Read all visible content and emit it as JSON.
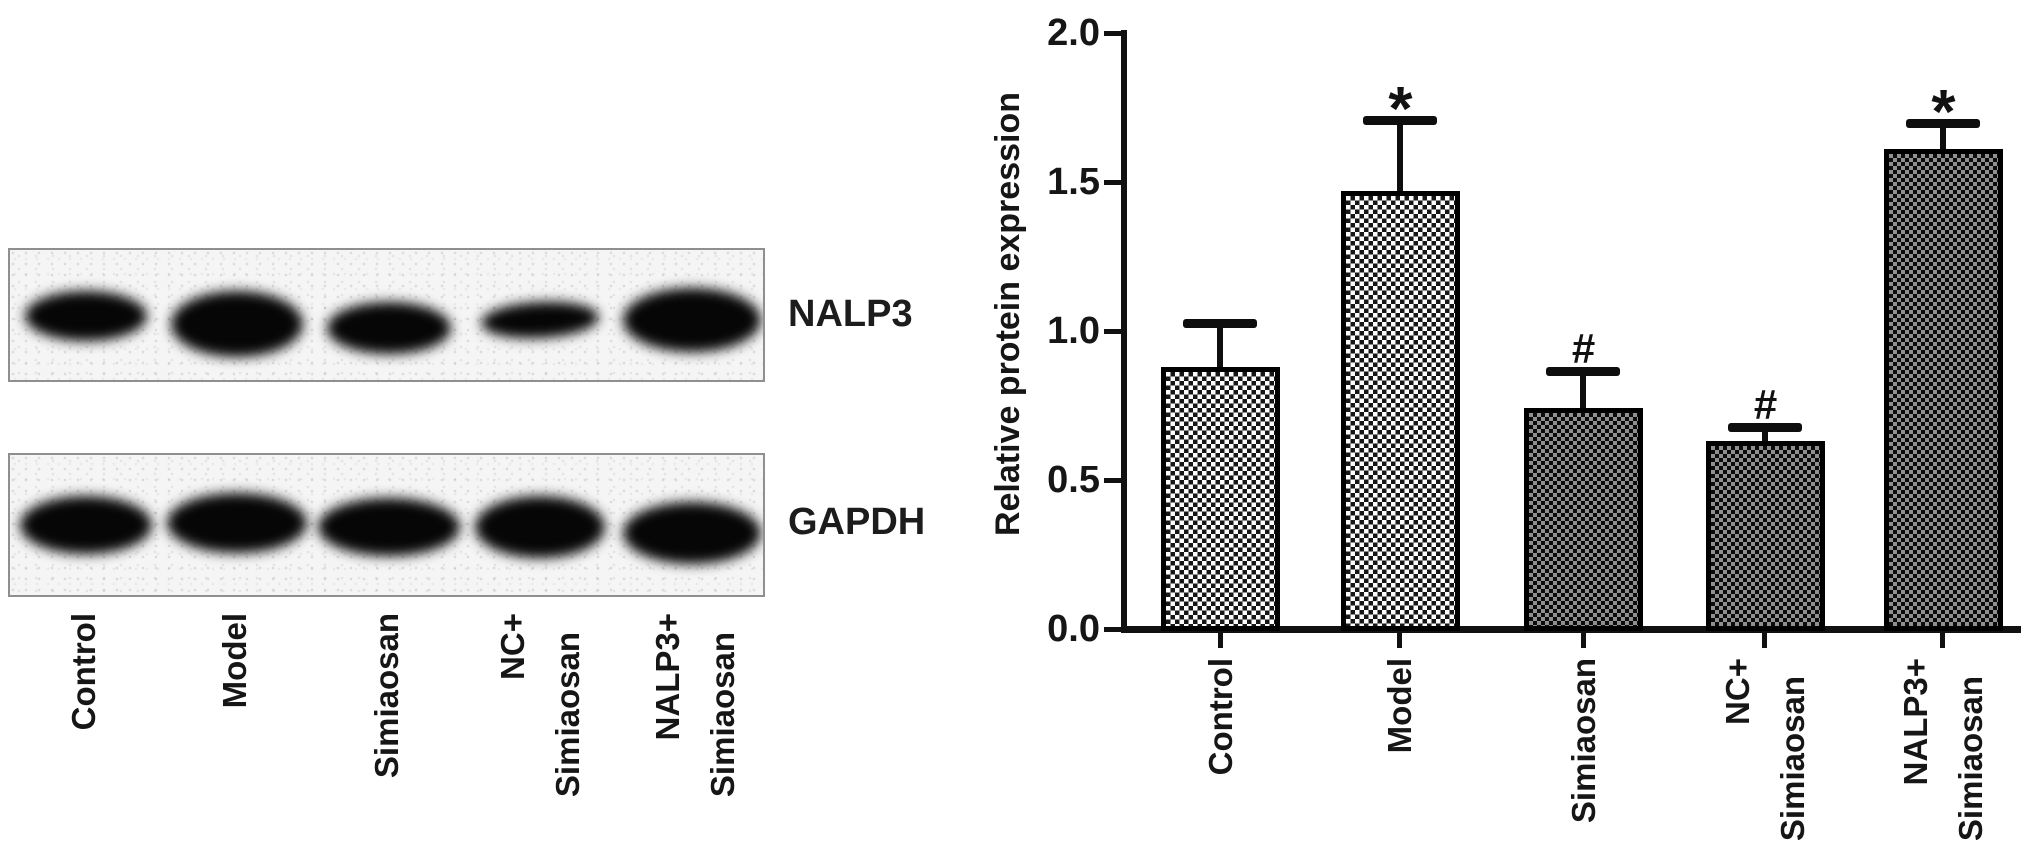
{
  "blot": {
    "targets": [
      {
        "label": "NALP3"
      },
      {
        "label": "GAPDH"
      }
    ],
    "lane_count": 5
  },
  "groups": [
    {
      "name": "Control",
      "lines": [
        "Control"
      ]
    },
    {
      "name": "Model",
      "lines": [
        "Model"
      ]
    },
    {
      "name": "Simiaosan",
      "lines": [
        "Simiaosan"
      ]
    },
    {
      "name": "NC+ Simiaosan",
      "lines": [
        "NC+",
        "Simiaosan"
      ]
    },
    {
      "name": "NALP3+ Simiaosan",
      "lines": [
        "NALP3+",
        "Simiaosan"
      ]
    }
  ],
  "chart_data": {
    "type": "bar",
    "categories": [
      "Control",
      "Model",
      "Simiaosan",
      "NC+ Simiaosan",
      "NALP3+ Simiaosan"
    ],
    "values": [
      0.88,
      1.47,
      0.74,
      0.63,
      1.61
    ],
    "errors": [
      0.13,
      0.22,
      0.11,
      0.03,
      0.07
    ],
    "significance": [
      "",
      "*",
      "#",
      "#",
      "*"
    ],
    "title": "",
    "xlabel": "",
    "ylabel": "Relative protein expression",
    "ylim": [
      0,
      2.0
    ],
    "yticks": [
      2.0,
      1.5,
      1.0,
      0.5,
      0.0
    ],
    "ytick_labels": [
      "2.0",
      "1.5",
      "1.0",
      "0.5",
      "0.0"
    ],
    "grid": false,
    "legend": "none",
    "bar_fill": "checkerboard-pattern",
    "pattern": [
      "light",
      "light",
      "dark",
      "dark",
      "dark"
    ],
    "ink_color": "#111111"
  }
}
